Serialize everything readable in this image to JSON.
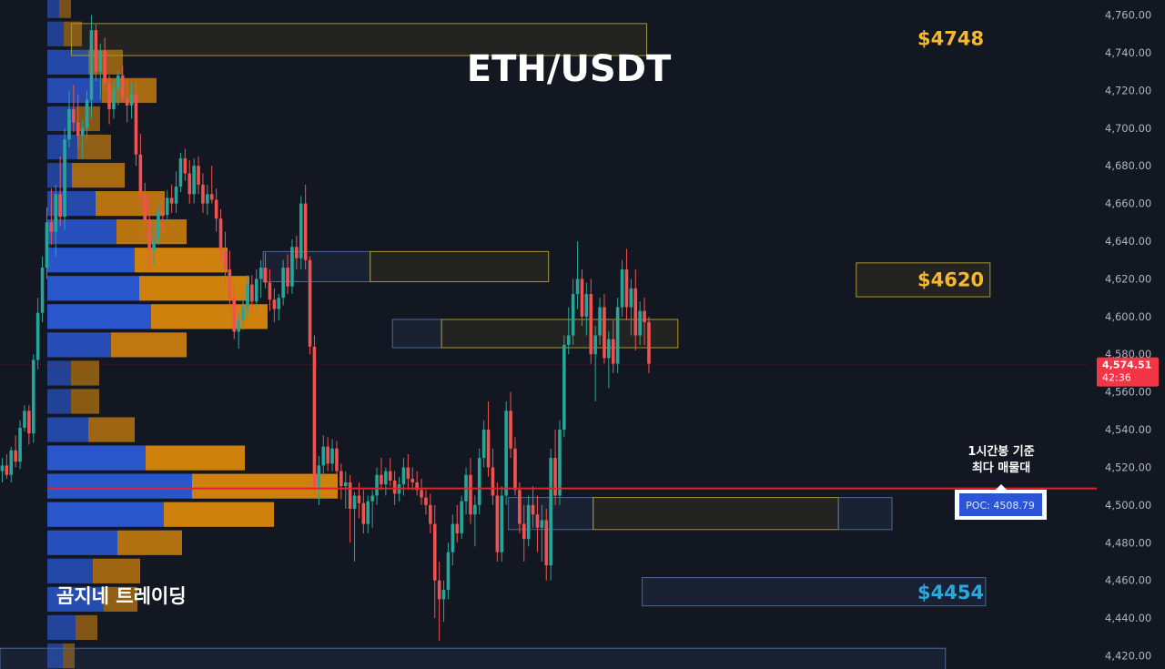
{
  "chart_data": {
    "type": "candlestick",
    "title": "ETH/USDT",
    "watermark": "곰지네 트레이딩",
    "y_axis": {
      "ticks": [
        4420,
        4440,
        4460,
        4480,
        4500,
        4520,
        4540,
        4560,
        4580,
        4600,
        4620,
        4640,
        4660,
        4680,
        4700,
        4720,
        4740,
        4760
      ],
      "tick_labels": [
        "4,420.00",
        "4,440.00",
        "4,460.00",
        "4,480.00",
        "4,500.00",
        "4,520.00",
        "4,540.00",
        "4,560.00",
        "4,580.00",
        "4,600.00",
        "4,620.00",
        "4,640.00",
        "4,660.00",
        "4,680.00",
        "4,700.00",
        "4,720.00",
        "4,740.00",
        "4,760.00"
      ],
      "range": [
        4413,
        4768
      ]
    },
    "current_price": {
      "value": 4574.51,
      "label": "4,574.51",
      "countdown": "42:36",
      "color": "#f23645"
    },
    "poc": {
      "value": 4508.79,
      "label": "POC: 4508.79",
      "annotation": [
        "1시간봉 기준",
        "최다 매물대"
      ],
      "line_color": "#e0242f"
    },
    "price_labels": [
      {
        "text": "$4748",
        "value": 4748,
        "color": "#f5b82e"
      },
      {
        "text": "$4620",
        "value": 4620,
        "color": "#f5b82e"
      },
      {
        "text": "$4454",
        "value": 4454,
        "color": "#29a8e0"
      }
    ],
    "zones": [
      {
        "type": "supply",
        "top": 4755.5,
        "bottom": 4738.5,
        "start": 16,
        "end": 145
      },
      {
        "type": "demand",
        "top": 4634.5,
        "bottom": 4618.5,
        "start": 59,
        "end": 83
      },
      {
        "type": "supply",
        "top": 4634.5,
        "bottom": 4618.5,
        "start": 83,
        "end": 123
      },
      {
        "type": "demand",
        "top": 4598.5,
        "bottom": 4583.5,
        "start": 88,
        "end": 99
      },
      {
        "type": "supply",
        "top": 4598.5,
        "bottom": 4583.5,
        "start": 99,
        "end": 152
      },
      {
        "type": "supply",
        "top": 4628.5,
        "bottom": 4610.5,
        "start": 192,
        "end": 222
      },
      {
        "type": "demand",
        "top": 4504,
        "bottom": 4487,
        "start": 114,
        "end": 133
      },
      {
        "type": "supply",
        "top": 4504,
        "bottom": 4487,
        "start": 133,
        "end": 188
      },
      {
        "type": "demand",
        "top": 4504,
        "bottom": 4487,
        "start": 188,
        "end": 200
      },
      {
        "type": "demand",
        "top": 4461.5,
        "bottom": 4446.5,
        "start": 144,
        "end": 221
      },
      {
        "type": "demand",
        "top": 4424,
        "bottom": 4411,
        "start": -10,
        "end": 212
      }
    ],
    "volume_profile": {
      "levels": [
        4765,
        4750,
        4735,
        4720,
        4705,
        4690,
        4675,
        4660,
        4645,
        4630,
        4615,
        4600,
        4585,
        4570,
        4555,
        4540,
        4525,
        4510,
        4495,
        4480,
        4465,
        4450,
        4435,
        4420
      ],
      "buy": [
        13,
        18,
        45,
        60,
        32,
        33,
        27,
        53,
        76,
        96,
        101,
        114,
        70,
        26,
        26,
        45,
        108,
        159,
        128,
        77,
        50,
        62,
        31,
        17
      ],
      "sell": [
        13,
        20,
        38,
        60,
        26,
        37,
        58,
        76,
        77,
        102,
        121,
        128,
        83,
        31,
        31,
        51,
        109,
        160,
        121,
        71,
        52,
        37,
        24,
        13
      ]
    },
    "candles": [
      [
        4518,
        4525,
        4512,
        4521
      ],
      [
        4521,
        4527,
        4514,
        4516
      ],
      [
        4516,
        4531,
        4512,
        4529
      ],
      [
        4529,
        4537,
        4520,
        4523
      ],
      [
        4523,
        4545,
        4519,
        4541
      ],
      [
        4541,
        4553,
        4539,
        4550
      ],
      [
        4550,
        4553,
        4532,
        4538
      ],
      [
        4538,
        4580,
        4533,
        4577
      ],
      [
        4577,
        4610,
        4572,
        4602
      ],
      [
        4602,
        4632,
        4597,
        4626
      ],
      [
        4626,
        4658,
        4620,
        4650
      ],
      [
        4650,
        4668,
        4638,
        4645
      ],
      [
        4645,
        4670,
        4632,
        4665
      ],
      [
        4665,
        4685,
        4648,
        4653
      ],
      [
        4653,
        4700,
        4646,
        4694
      ],
      [
        4694,
        4720,
        4690,
        4710
      ],
      [
        4710,
        4723,
        4698,
        4703
      ],
      [
        4703,
        4718,
        4690,
        4696
      ],
      [
        4696,
        4704,
        4684,
        4700
      ],
      [
        4700,
        4720,
        4694,
        4715
      ],
      [
        4715,
        4760,
        4705,
        4752
      ],
      [
        4752,
        4755,
        4725,
        4730
      ],
      [
        4730,
        4745,
        4715,
        4741
      ],
      [
        4741,
        4748,
        4720,
        4724
      ],
      [
        4724,
        4728,
        4702,
        4710
      ],
      [
        4710,
        4725,
        4705,
        4721
      ],
      [
        4721,
        4731,
        4712,
        4728
      ],
      [
        4728,
        4733,
        4714,
        4716
      ],
      [
        4716,
        4726,
        4703,
        4712
      ],
      [
        4712,
        4724,
        4705,
        4718
      ],
      [
        4718,
        4725,
        4680,
        4686
      ],
      [
        4686,
        4697,
        4658,
        4665
      ],
      [
        4665,
        4671,
        4640,
        4651
      ],
      [
        4651,
        4664,
        4624,
        4635
      ],
      [
        4635,
        4648,
        4627,
        4641
      ],
      [
        4641,
        4660,
        4638,
        4656
      ],
      [
        4656,
        4663,
        4645,
        4654
      ],
      [
        4654,
        4667,
        4650,
        4663
      ],
      [
        4663,
        4670,
        4655,
        4660
      ],
      [
        4660,
        4677,
        4655,
        4669
      ],
      [
        4669,
        4687,
        4666,
        4684
      ],
      [
        4684,
        4689,
        4672,
        4676
      ],
      [
        4676,
        4683,
        4660,
        4665
      ],
      [
        4665,
        4684,
        4660,
        4680
      ],
      [
        4680,
        4685,
        4665,
        4670
      ],
      [
        4670,
        4676,
        4655,
        4660
      ],
      [
        4660,
        4670,
        4654,
        4665
      ],
      [
        4665,
        4680,
        4660,
        4662
      ],
      [
        4662,
        4668,
        4645,
        4652
      ],
      [
        4652,
        4657,
        4630,
        4635
      ],
      [
        4635,
        4645,
        4618,
        4625
      ],
      [
        4625,
        4635,
        4605,
        4610
      ],
      [
        4610,
        4617,
        4588,
        4592
      ],
      [
        4592,
        4602,
        4583,
        4598
      ],
      [
        4598,
        4610,
        4593,
        4605
      ],
      [
        4605,
        4622,
        4600,
        4617
      ],
      [
        4617,
        4622,
        4602,
        4608
      ],
      [
        4608,
        4625,
        4604,
        4620
      ],
      [
        4620,
        4630,
        4610,
        4626
      ],
      [
        4626,
        4634,
        4615,
        4618
      ],
      [
        4618,
        4625,
        4603,
        4609
      ],
      [
        4609,
        4615,
        4597,
        4604
      ],
      [
        4604,
        4612,
        4598,
        4610
      ],
      [
        4610,
        4630,
        4606,
        4626
      ],
      [
        4626,
        4633,
        4612,
        4616
      ],
      [
        4616,
        4641,
        4612,
        4637
      ],
      [
        4637,
        4643,
        4625,
        4631
      ],
      [
        4631,
        4664,
        4625,
        4660
      ],
      [
        4660,
        4670,
        4625,
        4630
      ],
      [
        4630,
        4632,
        4580,
        4584
      ],
      [
        4584,
        4590,
        4505,
        4510
      ],
      [
        4510,
        4526,
        4500,
        4521
      ],
      [
        4521,
        4537,
        4515,
        4531
      ],
      [
        4531,
        4536,
        4518,
        4522
      ],
      [
        4522,
        4535,
        4518,
        4530
      ],
      [
        4530,
        4534,
        4515,
        4518
      ],
      [
        4518,
        4522,
        4503,
        4510
      ],
      [
        4510,
        4518,
        4498,
        4512
      ],
      [
        4512,
        4516,
        4480,
        4498
      ],
      [
        4498,
        4507,
        4470,
        4505
      ],
      [
        4505,
        4512,
        4493,
        4501
      ],
      [
        4501,
        4508,
        4485,
        4490
      ],
      [
        4490,
        4505,
        4485,
        4502
      ],
      [
        4502,
        4508,
        4488,
        4505
      ],
      [
        4505,
        4520,
        4500,
        4516
      ],
      [
        4516,
        4525,
        4508,
        4511
      ],
      [
        4511,
        4520,
        4505,
        4518
      ],
      [
        4518,
        4525,
        4510,
        4513
      ],
      [
        4513,
        4518,
        4500,
        4506
      ],
      [
        4506,
        4515,
        4502,
        4511
      ],
      [
        4511,
        4525,
        4505,
        4520
      ],
      [
        4520,
        4527,
        4508,
        4514
      ],
      [
        4514,
        4520,
        4508,
        4512
      ],
      [
        4512,
        4518,
        4505,
        4508
      ],
      [
        4508,
        4514,
        4500,
        4504
      ],
      [
        4504,
        4508,
        4495,
        4500
      ],
      [
        4500,
        4506,
        4485,
        4490
      ],
      [
        4490,
        4500,
        4440,
        4460
      ],
      [
        4460,
        4470,
        4428,
        4450
      ],
      [
        4450,
        4460,
        4438,
        4455
      ],
      [
        4455,
        4480,
        4450,
        4475
      ],
      [
        4475,
        4495,
        4468,
        4490
      ],
      [
        4490,
        4500,
        4480,
        4485
      ],
      [
        4485,
        4505,
        4482,
        4502
      ],
      [
        4502,
        4520,
        4495,
        4516
      ],
      [
        4516,
        4525,
        4490,
        4495
      ],
      [
        4495,
        4505,
        4478,
        4500
      ],
      [
        4500,
        4530,
        4495,
        4525
      ],
      [
        4525,
        4545,
        4520,
        4540
      ],
      [
        4540,
        4555,
        4515,
        4520
      ],
      [
        4520,
        4530,
        4500,
        4505
      ],
      [
        4505,
        4512,
        4470,
        4475
      ],
      [
        4475,
        4510,
        4470,
        4505
      ],
      [
        4505,
        4555,
        4500,
        4550
      ],
      [
        4550,
        4560,
        4525,
        4530
      ],
      [
        4530,
        4536,
        4505,
        4508
      ],
      [
        4508,
        4512,
        4485,
        4490
      ],
      [
        4490,
        4500,
        4470,
        4482
      ],
      [
        4482,
        4505,
        4478,
        4500
      ],
      [
        4500,
        4510,
        4488,
        4495
      ],
      [
        4495,
        4505,
        4475,
        4488
      ],
      [
        4488,
        4500,
        4470,
        4492
      ],
      [
        4492,
        4498,
        4460,
        4468
      ],
      [
        4468,
        4530,
        4460,
        4525
      ],
      [
        4525,
        4540,
        4500,
        4505
      ],
      [
        4505,
        4545,
        4500,
        4540
      ],
      [
        4540,
        4590,
        4536,
        4585
      ],
      [
        4585,
        4605,
        4580,
        4590
      ],
      [
        4590,
        4620,
        4585,
        4612
      ],
      [
        4612,
        4640,
        4604,
        4620
      ],
      [
        4620,
        4625,
        4595,
        4600
      ],
      [
        4600,
        4618,
        4590,
        4612
      ],
      [
        4612,
        4620,
        4575,
        4580
      ],
      [
        4580,
        4595,
        4555,
        4590
      ],
      [
        4590,
        4610,
        4585,
        4605
      ],
      [
        4605,
        4612,
        4575,
        4578
      ],
      [
        4578,
        4592,
        4562,
        4588
      ],
      [
        4588,
        4598,
        4570,
        4575
      ],
      [
        4575,
        4610,
        4570,
        4605
      ],
      [
        4605,
        4630,
        4600,
        4625
      ],
      [
        4625,
        4636,
        4598,
        4605
      ],
      [
        4605,
        4620,
        4590,
        4615
      ],
      [
        4615,
        4625,
        4582,
        4590
      ],
      [
        4590,
        4608,
        4585,
        4603
      ],
      [
        4603,
        4610,
        4585,
        4597
      ],
      [
        4597,
        4600,
        4570,
        4575
      ]
    ],
    "colors": {
      "up": "#26a69a",
      "down": "#ef5350"
    },
    "grid": false,
    "legend": "none"
  },
  "axis_labels": {
    "poc_box": "POC: 4508.79"
  }
}
